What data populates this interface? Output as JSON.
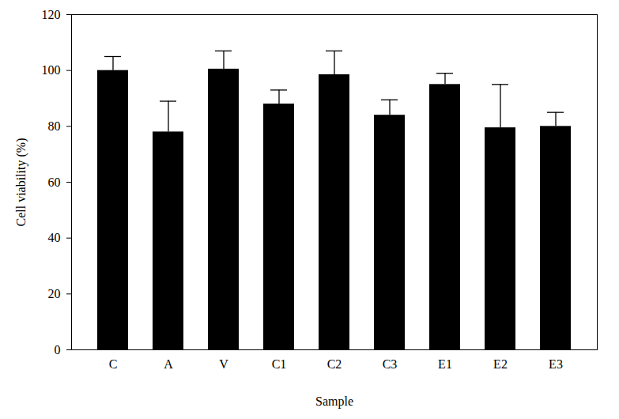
{
  "chart_data": {
    "type": "bar",
    "x_label": "Sample",
    "y_label": "Cell viability (%)",
    "categories": [
      "C",
      "A",
      "V",
      "C1",
      "C2",
      "C3",
      "E1",
      "E2",
      "E3"
    ],
    "values": [
      100,
      78,
      100.5,
      88,
      98.5,
      84,
      95,
      79.5,
      80
    ],
    "errors": [
      5,
      11,
      6.5,
      5,
      8.5,
      5.5,
      4,
      15.5,
      5
    ],
    "color": "#000000",
    "ylim": [
      0,
      120
    ],
    "yticks": [
      0,
      20,
      40,
      60,
      80,
      100,
      120
    ],
    "grid": false
  }
}
